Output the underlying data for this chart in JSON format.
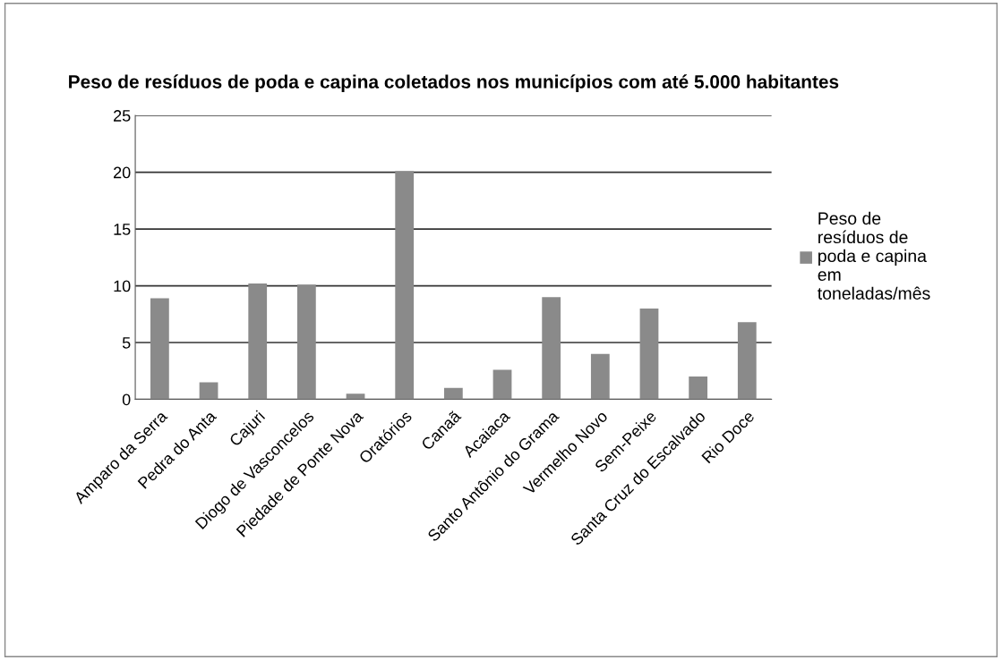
{
  "chart_data": {
    "type": "bar",
    "title": "Peso de resíduos de poda e capina coletados nos municípios com até 5.000 habitantes",
    "categories": [
      "Amparo da Serra",
      "Pedra do Anta",
      "Cajuri",
      "Diogo de Vasconcelos",
      "Piedade de Ponte Nova",
      "Oratórios",
      "Canaã",
      "Acaiaca",
      "Santo Antônio do Grama",
      "Vermelho Novo",
      "Sem-Peixe",
      "Santa Cruz do Escalvado",
      "Rio Doce"
    ],
    "series": [
      {
        "name": "Peso de resíduos de poda e capina em toneladas/mês",
        "color": "#8a8a8a",
        "values": [
          8.9,
          1.5,
          10.2,
          10.1,
          0.5,
          20.1,
          1.0,
          2.6,
          9.0,
          4.0,
          8.0,
          2.0,
          6.8
        ]
      }
    ],
    "ylim": [
      0,
      25
    ],
    "yticks": [
      0,
      5,
      10,
      15,
      20,
      25
    ],
    "grid": "y",
    "legend": "right"
  }
}
